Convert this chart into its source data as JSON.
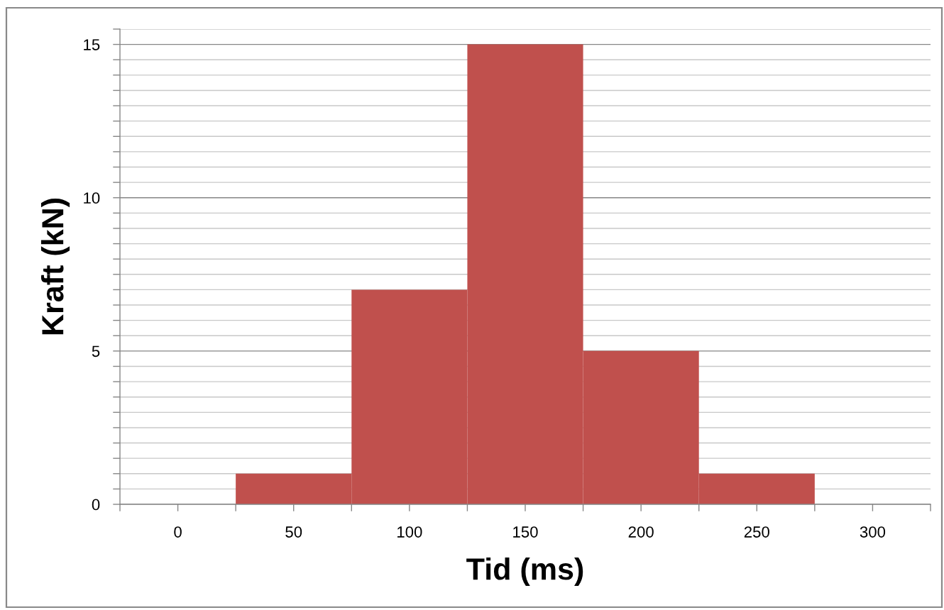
{
  "chart_data": {
    "type": "histogram",
    "xlabel": "Tid (ms)",
    "ylabel": "Kraft (kN)",
    "bins": [
      25,
      75,
      125,
      175,
      225,
      275
    ],
    "values": [
      1,
      7,
      15,
      5,
      1
    ],
    "color": "#c0504d",
    "xlim": [
      -25,
      325
    ],
    "xticks": [
      {
        "value": -25,
        "label": null
      },
      0,
      {
        "value": 25,
        "label": null
      },
      50,
      {
        "value": 75,
        "label": null
      },
      100,
      {
        "value": 125,
        "label": null
      },
      150,
      {
        "value": 175,
        "label": null
      },
      200,
      {
        "value": 225,
        "label": null
      },
      250,
      {
        "value": 275,
        "label": null
      },
      300,
      {
        "value": 325,
        "label": null
      }
    ],
    "ylim": [
      0,
      15.5
    ],
    "yticks": [
      0,
      {
        "value": 0.5,
        "label": null
      },
      {
        "value": 1,
        "label": null
      },
      {
        "value": 1.5,
        "label": null
      },
      {
        "value": 2,
        "label": null
      },
      {
        "value": 2.5,
        "label": null
      },
      {
        "value": 3,
        "label": null
      },
      {
        "value": 3.5,
        "label": null
      },
      {
        "value": 4,
        "label": null
      },
      {
        "value": 4.5,
        "label": null
      },
      5,
      {
        "value": 5.5,
        "label": null
      },
      {
        "value": 6,
        "label": null
      },
      {
        "value": 6.5,
        "label": null
      },
      {
        "value": 7,
        "label": null
      },
      {
        "value": 7.5,
        "label": null
      },
      {
        "value": 8,
        "label": null
      },
      {
        "value": 8.5,
        "label": null
      },
      {
        "value": 9,
        "label": null
      },
      {
        "value": 9.5,
        "label": null
      },
      10,
      {
        "value": 10.5,
        "label": null
      },
      {
        "value": 11,
        "label": null
      },
      {
        "value": 11.5,
        "label": null
      },
      {
        "value": 12,
        "label": null
      },
      {
        "value": 12.5,
        "label": null
      },
      {
        "value": 13,
        "label": null
      },
      {
        "value": 13.5,
        "label": null
      },
      {
        "value": 14,
        "label": null
      },
      {
        "value": 14.5,
        "label": null
      },
      15,
      {
        "value": 15.5,
        "label": null
      }
    ],
    "grid": "y"
  }
}
